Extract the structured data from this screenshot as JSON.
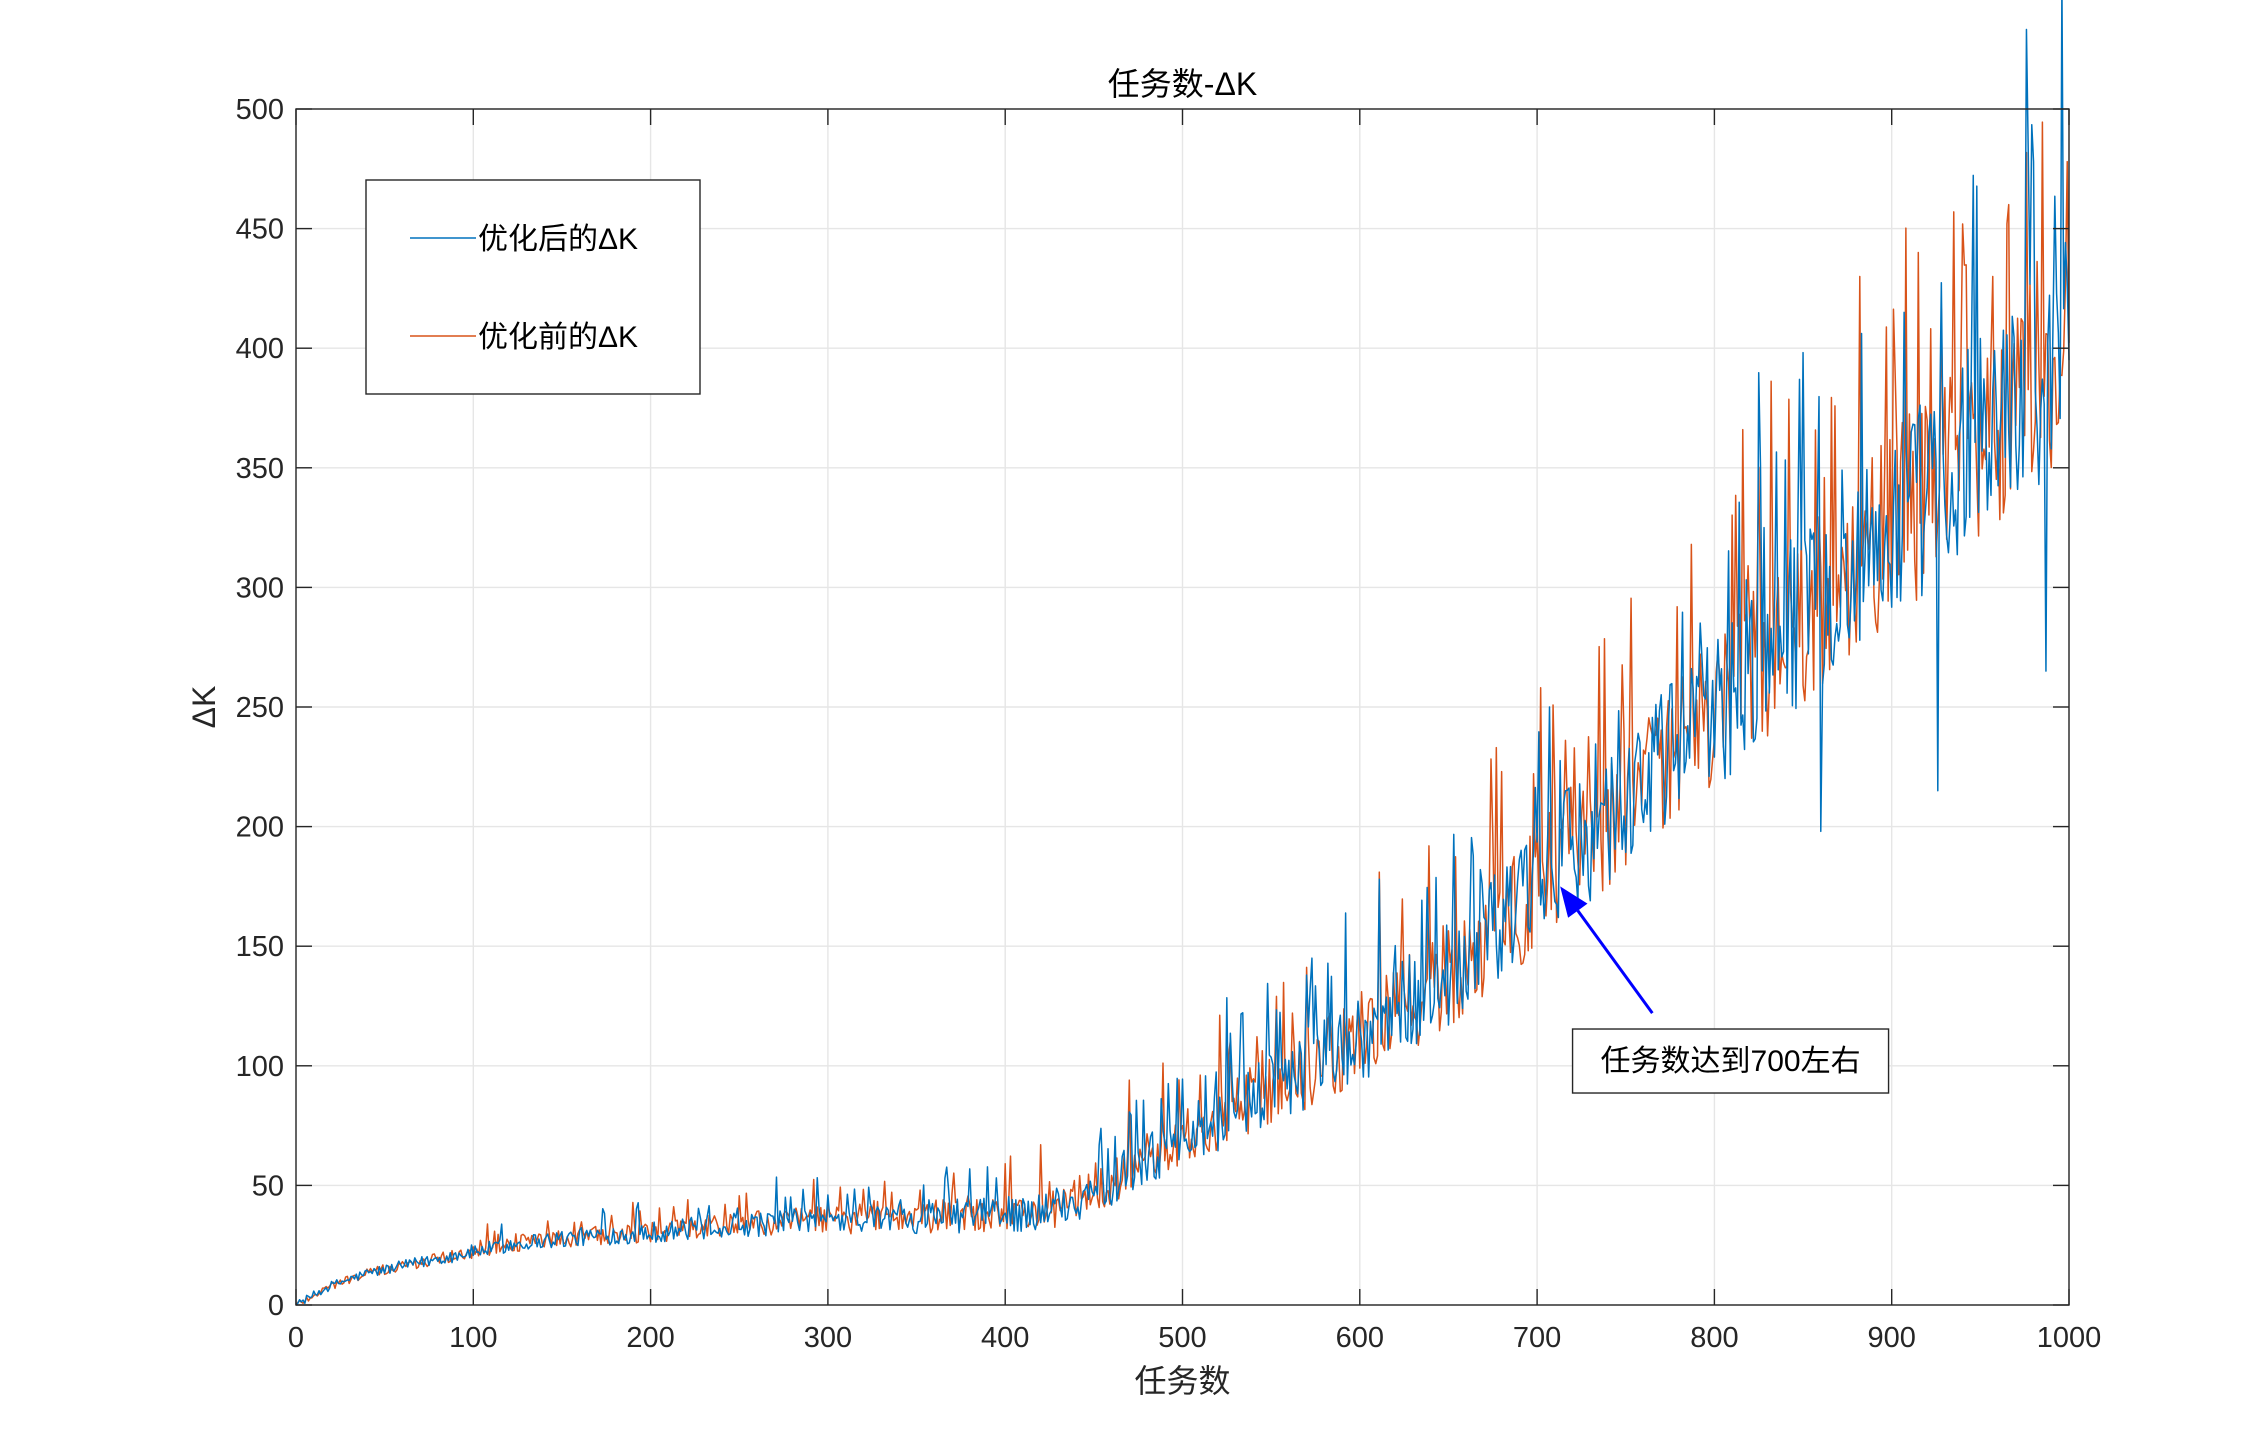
{
  "chart_data": {
    "type": "line",
    "title": "任务数-ΔK",
    "xlabel": "任务数",
    "ylabel": "ΔK",
    "xlim": [
      0,
      1000
    ],
    "ylim": [
      0,
      500
    ],
    "xticks": [
      0,
      100,
      200,
      300,
      400,
      500,
      600,
      700,
      800,
      900,
      1000
    ],
    "yticks": [
      0,
      50,
      100,
      150,
      200,
      250,
      300,
      350,
      400,
      450,
      500
    ],
    "grid": true,
    "legend_position": "top-left",
    "trend": {
      "x": [
        0,
        20,
        40,
        60,
        80,
        100,
        130,
        160,
        200,
        250,
        300,
        350,
        400,
        420,
        440,
        460,
        480,
        500,
        530,
        560,
        600,
        630,
        660,
        700,
        720,
        750,
        780,
        800,
        850,
        900,
        950,
        1000
      ],
      "y": [
        0,
        8,
        13,
        16,
        19,
        22,
        26,
        28,
        30,
        33,
        35,
        36,
        37,
        38,
        42,
        50,
        60,
        68,
        80,
        93,
        110,
        125,
        143,
        172,
        188,
        208,
        230,
        245,
        285,
        320,
        360,
        395
      ]
    },
    "series": [
      {
        "name": "优化后的ΔK",
        "color": "#0072BD",
        "spikes": [
          [
            490,
            68
          ],
          [
            573,
            145
          ],
          [
            611,
            178
          ],
          [
            707,
            250
          ],
          [
            768,
            230
          ],
          [
            828,
            325
          ],
          [
            860,
            198
          ],
          [
            907,
            415
          ],
          [
            926,
            215
          ],
          [
            980,
            478
          ],
          [
            987,
            265
          ],
          [
            1000,
            395
          ]
        ]
      },
      {
        "name": "优化前的ΔK",
        "color": "#D95319",
        "spikes": [
          [
            420,
            67
          ],
          [
            470,
            94
          ],
          [
            562,
            122
          ],
          [
            630,
            125
          ],
          [
            677,
            233
          ],
          [
            787,
            318
          ],
          [
            882,
            430
          ],
          [
            915,
            440
          ],
          [
            957,
            430
          ],
          [
            966,
            460
          ],
          [
            999,
            478
          ]
        ]
      }
    ],
    "annotations": [
      {
        "text": "任务数达到700左右",
        "point": [
          713,
          175
        ],
        "arrow_from": [
          765,
          122
        ],
        "box_at": [
          720,
          102
        ],
        "color": "#0000FF"
      }
    ]
  }
}
